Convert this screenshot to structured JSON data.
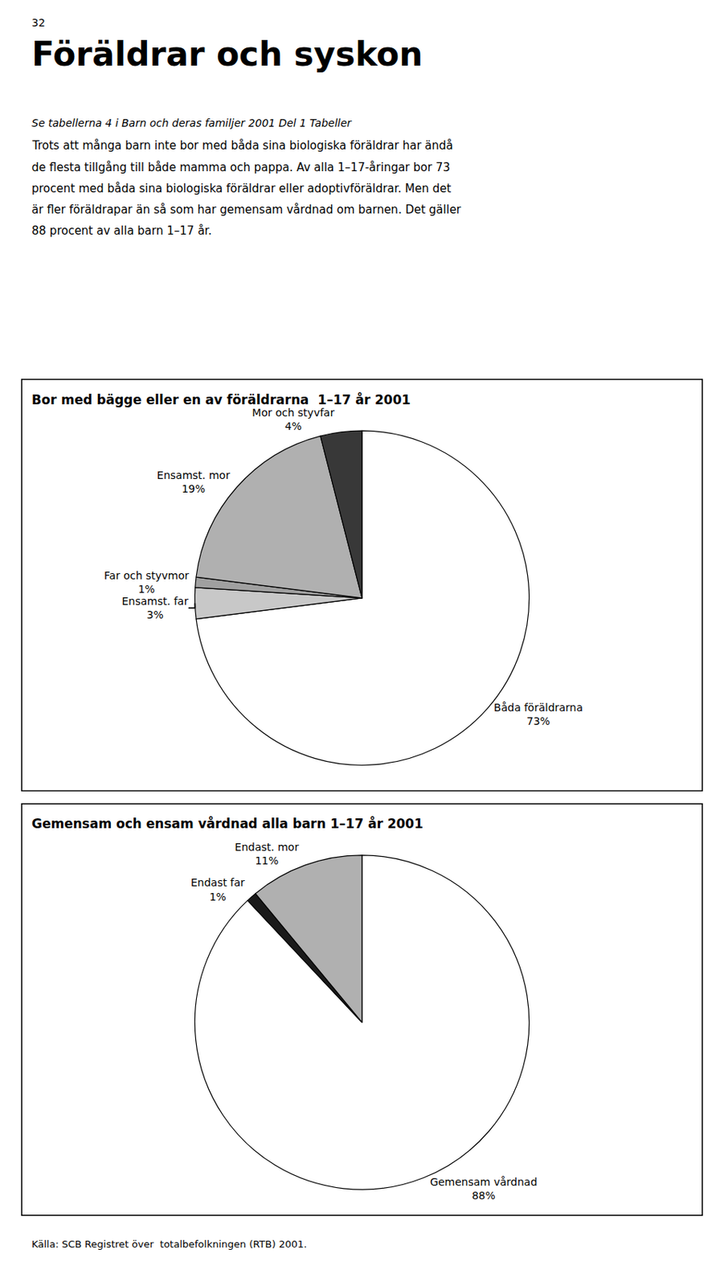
{
  "page_number": "32",
  "title": "Föräldrar och syskon",
  "subtitle": "Se tabellerna 4 i Barn och deras familjer 2001 Del 1 Tabeller",
  "body": [
    "Trots att många barn inte bor med båda sina biologiska föräldrar har ändå",
    "de flesta tillgång till både mamma och pappa. Av alla 1–17-åringar bor 73",
    "procent med båda sina biologiska föräldrar eller adoptivföräldrar. Men det",
    "är fler föräldrapar än så som har gemensam vårdnad om barnen. Det gäller",
    "88 procent av alla barn 1–17 år."
  ],
  "footer": "Källa: SCB Registret över  totalbefolkningen (RTB) 2001.",
  "chart_data": [
    {
      "type": "pie",
      "title": "Bor med bägge eller en av föräldrarna  1–17 år 2001",
      "categories": [
        "Båda föräldrarna",
        "Ensamst. far",
        "Far och styvmor",
        "Ensamst. mor",
        "Mor och styvfar"
      ],
      "values": [
        73,
        3,
        1,
        19,
        4
      ],
      "value_labels": [
        "73%",
        "3%",
        "1%",
        "19%",
        "4%"
      ],
      "colors": [
        "#ffffff",
        "#c8c8c8",
        "#a0a0a0",
        "#b0b0b0",
        "#383838"
      ]
    },
    {
      "type": "pie",
      "title": "Gemensam och ensam vårdnad alla barn 1–17 år 2001",
      "categories": [
        "Gemensam vårdnad",
        "Endast far",
        "Endast. mor"
      ],
      "values": [
        88,
        1,
        11
      ],
      "value_labels": [
        "88%",
        "1%",
        "11%"
      ],
      "colors": [
        "#ffffff",
        "#1a1a1a",
        "#b0b0b0"
      ]
    }
  ]
}
